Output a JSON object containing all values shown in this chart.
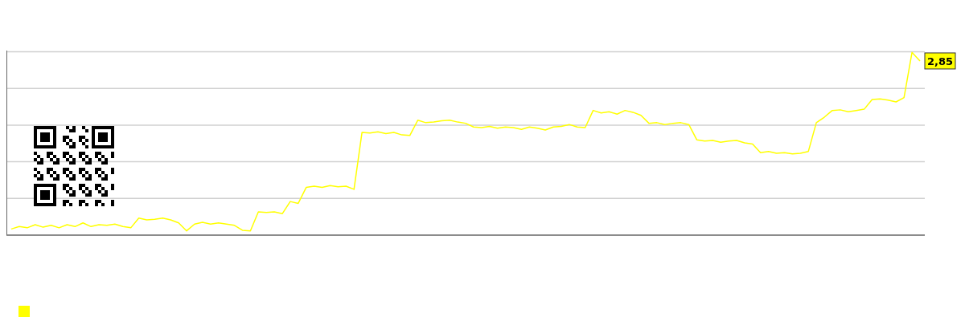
{
  "chart_data": {
    "type": "line",
    "grid": true,
    "marker": "none",
    "line_style": "solid",
    "ylim": [
      0,
      3.02
    ],
    "yticks": [
      {
        "value": 0.6,
        "label": null
      },
      {
        "value": 1.2,
        "label": null
      },
      {
        "value": 1.8,
        "label": null
      },
      {
        "value": 2.4,
        "label": null
      },
      {
        "value": 3.0,
        "label": null
      }
    ],
    "categories": [
      null,
      null,
      null,
      null,
      null,
      null,
      null,
      null,
      null,
      null,
      null,
      null,
      null,
      null,
      null,
      null,
      null,
      null,
      null,
      null,
      null,
      null,
      null,
      null,
      null,
      null,
      null,
      null,
      null,
      null,
      null,
      null,
      null,
      null,
      null,
      null,
      null,
      null,
      null,
      null,
      null,
      null,
      null,
      null,
      null,
      null,
      null,
      null,
      null,
      null,
      null,
      null,
      null,
      null,
      null,
      null,
      null,
      null,
      null,
      null,
      null,
      null,
      null,
      null,
      null,
      null,
      null,
      null,
      null,
      null,
      null,
      null,
      null,
      null,
      null,
      null,
      null,
      null,
      null,
      null,
      null,
      null,
      null,
      null,
      null,
      null,
      null,
      null,
      null,
      null,
      null,
      null,
      null,
      null,
      null,
      null,
      null,
      null,
      null,
      null,
      null,
      null,
      null,
      null,
      null,
      null,
      null,
      null,
      null,
      null,
      null,
      null,
      null,
      null,
      null
    ],
    "series": [
      {
        "color": "#ffff00",
        "values": [
          0.1,
          0.14,
          0.12,
          0.17,
          0.13,
          0.16,
          0.12,
          0.17,
          0.14,
          0.2,
          0.14,
          0.17,
          0.16,
          0.18,
          0.14,
          0.12,
          0.28,
          0.25,
          0.26,
          0.28,
          0.25,
          0.2,
          0.07,
          0.18,
          0.21,
          0.18,
          0.2,
          0.18,
          0.16,
          0.08,
          0.07,
          0.38,
          0.37,
          0.38,
          0.35,
          0.55,
          0.52,
          0.78,
          0.8,
          0.78,
          0.81,
          0.79,
          0.8,
          0.75,
          1.68,
          1.67,
          1.69,
          1.66,
          1.68,
          1.64,
          1.63,
          1.88,
          1.84,
          1.85,
          1.87,
          1.88,
          1.85,
          1.83,
          1.77,
          1.76,
          1.78,
          1.75,
          1.77,
          1.76,
          1.73,
          1.77,
          1.75,
          1.72,
          1.77,
          1.78,
          1.81,
          1.77,
          1.76,
          2.04,
          2.0,
          2.02,
          1.98,
          2.04,
          2.01,
          1.96,
          1.83,
          1.84,
          1.81,
          1.83,
          1.84,
          1.81,
          1.56,
          1.54,
          1.55,
          1.52,
          1.54,
          1.55,
          1.51,
          1.49,
          1.35,
          1.37,
          1.34,
          1.35,
          1.33,
          1.34,
          1.37,
          1.84,
          1.93,
          2.04,
          2.05,
          2.02,
          2.04,
          2.06,
          2.22,
          2.23,
          2.21,
          2.18,
          2.25,
          2.99,
          2.85
        ],
        "value_labels": [
          null,
          null,
          null,
          null,
          null,
          null,
          null,
          null,
          null,
          null,
          null,
          null,
          null,
          null,
          null,
          null,
          null,
          null,
          null,
          null,
          null,
          null,
          null,
          null,
          null,
          null,
          null,
          null,
          null,
          null,
          null,
          null,
          null,
          null,
          null,
          null,
          null,
          null,
          null,
          null,
          null,
          null,
          null,
          null,
          null,
          null,
          null,
          null,
          null,
          null,
          null,
          null,
          null,
          null,
          null,
          null,
          null,
          null,
          null,
          null,
          null,
          null,
          null,
          null,
          null,
          null,
          null,
          null,
          null,
          null,
          null,
          null,
          null,
          null,
          null,
          null,
          null,
          null,
          null,
          null,
          null,
          null,
          null,
          null,
          null,
          null,
          null,
          null,
          null,
          null,
          null,
          null,
          null,
          null,
          null,
          null,
          null,
          null,
          null,
          null,
          null,
          null,
          null,
          null,
          null,
          null,
          null,
          null,
          null,
          null,
          null,
          null,
          null,
          null,
          "2,85"
        ]
      }
    ]
  }
}
